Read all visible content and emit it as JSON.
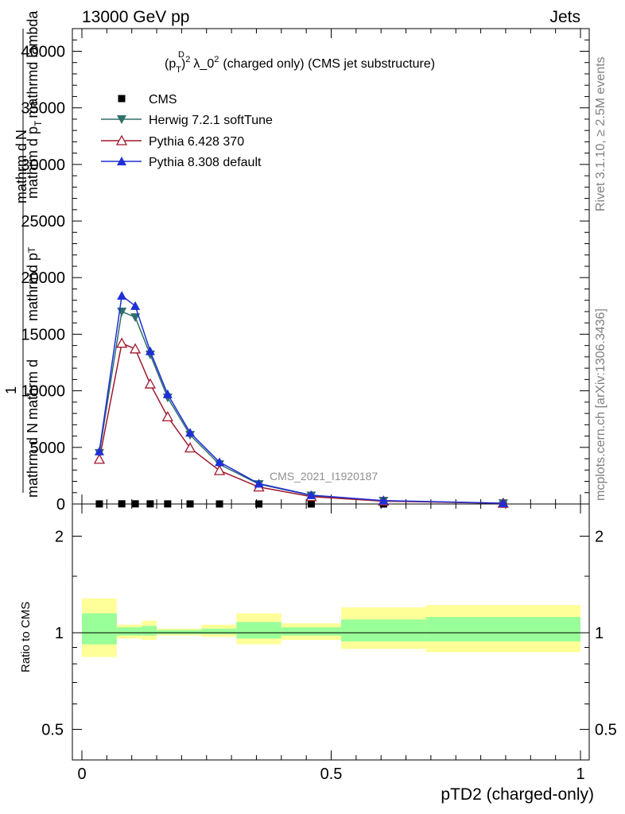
{
  "header": {
    "left": "13000 GeV pp",
    "right": "Jets"
  },
  "side_labels": {
    "rivet": "Rivet 3.1.10, ≥ 2.5M events",
    "mcplots": "mcplots.cern.ch [arXiv:1306.3436]"
  },
  "watermark": "CMS_2021_I1920187",
  "chart_data": [
    {
      "type": "line",
      "title_parts": {
        "pre": "(p",
        "sup": "D",
        "sub": "T",
        "post_sup": "2",
        "lam": "λ_0",
        "lam_sup": "2",
        "rest": "(charged only) (CMS jet substructure)"
      },
      "ylabel_top": "1",
      "ylabel_mid": "mathrm d N",
      "ylabel_num": "mathrm d",
      "ylabel_num2": "N",
      "ylabel_den": "mathrm d p",
      "ylabel_den_sub": "T",
      "ylabel_lambda": "mathrmd p",
      "ylabel_lambda_sub": "T",
      "ylabel_tail": "mathrmd lambda",
      "ylabel_frac_num": "mathrm d",
      "ylabel_frac_sup": "2",
      "ylabel_frac_n": "N",
      "ylim": [
        0,
        42000
      ],
      "yticks": [
        0,
        5000,
        10000,
        15000,
        20000,
        25000,
        30000,
        35000,
        40000
      ],
      "ytick_labels": [
        "0",
        "5000",
        "10000",
        "15000",
        "20000",
        "25000",
        "30000",
        "35000",
        "40000"
      ],
      "xlim": [
        -0.02,
        1.0
      ],
      "legend_position": "top-left",
      "series": [
        {
          "name": "CMS",
          "color": "#000000",
          "marker": "square",
          "x": [
            0.035,
            0.08,
            0.107,
            0.137,
            0.172,
            0.217,
            0.276,
            0.355,
            0.46,
            0.605,
            0.845
          ],
          "y": [
            6,
            14,
            14,
            10,
            7,
            4.5,
            2.5,
            1.2,
            0.5,
            0.15,
            0.03
          ]
        },
        {
          "name": "Herwig 7.2.1 softTune",
          "color": "#2f6f6b",
          "marker": "triangle-down",
          "x": [
            0.035,
            0.08,
            0.107,
            0.137,
            0.172,
            0.217,
            0.276,
            0.355,
            0.46,
            0.605,
            0.845
          ],
          "y": [
            4500,
            17000,
            16500,
            13200,
            9400,
            6100,
            3500,
            1750,
            750,
            280,
            60
          ]
        },
        {
          "name": "Pythia 6.428 370",
          "color": "#a0182b",
          "marker": "triangle-up-open",
          "x": [
            0.035,
            0.08,
            0.107,
            0.137,
            0.172,
            0.217,
            0.276,
            0.355,
            0.46,
            0.605,
            0.845
          ],
          "y": [
            3950,
            14200,
            13700,
            10600,
            7700,
            4950,
            2950,
            1500,
            650,
            250,
            60
          ]
        },
        {
          "name": "Pythia 8.308 default",
          "color": "#1f2fd6",
          "marker": "triangle-up",
          "x": [
            0.035,
            0.08,
            0.107,
            0.137,
            0.172,
            0.217,
            0.276,
            0.355,
            0.46,
            0.605,
            0.845
          ],
          "y": [
            4650,
            18400,
            17500,
            13500,
            9700,
            6300,
            3700,
            1800,
            780,
            300,
            70
          ]
        }
      ]
    },
    {
      "type": "area",
      "ylabel": "Ratio to CMS",
      "xlabel": "pTD2 (charged-only)",
      "ylim": [
        0.35,
        2.3
      ],
      "yticks": [
        0.5,
        1,
        2
      ],
      "ytick_labels": [
        "0.5",
        "1",
        "2"
      ],
      "xticks": [
        0,
        0.5,
        1
      ],
      "xtick_labels": [
        "0",
        "0.5",
        "1"
      ],
      "bands": {
        "bin_edges": [
          0.0,
          0.07,
          0.12,
          0.15,
          0.24,
          0.31,
          0.4,
          0.52,
          0.69,
          1.0
        ],
        "yellow_lo": [
          0.84,
          0.96,
          0.95,
          0.98,
          0.97,
          0.92,
          0.95,
          0.89,
          0.87
        ],
        "yellow_hi": [
          1.28,
          1.06,
          1.09,
          1.03,
          1.06,
          1.15,
          1.07,
          1.2,
          1.22
        ],
        "green_lo": [
          0.92,
          0.98,
          0.98,
          0.99,
          0.99,
          0.96,
          0.98,
          0.94,
          0.94
        ],
        "green_hi": [
          1.15,
          1.04,
          1.05,
          1.02,
          1.03,
          1.08,
          1.04,
          1.1,
          1.12
        ],
        "yellow_color": "#ffff99",
        "green_color": "#99ff99"
      }
    }
  ]
}
